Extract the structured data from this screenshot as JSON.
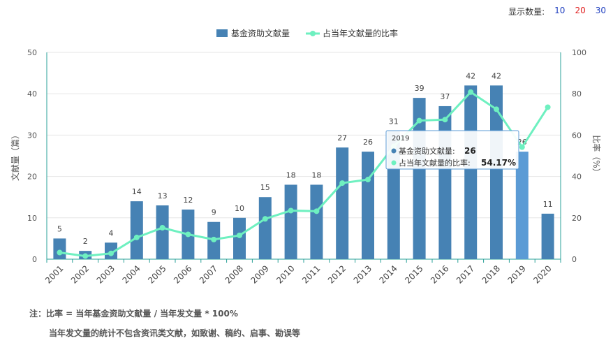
{
  "display_count": {
    "label": "显示数量:",
    "options": [
      {
        "label": "10",
        "color": "#1f3fbf"
      },
      {
        "label": "20",
        "color": "#e02020"
      },
      {
        "label": "30",
        "color": "#1f3fbf"
      }
    ]
  },
  "chart_data": {
    "type": "bar",
    "categories": [
      "2001",
      "2002",
      "2003",
      "2004",
      "2005",
      "2006",
      "2007",
      "2008",
      "2009",
      "2010",
      "2011",
      "2012",
      "2013",
      "2014",
      "2015",
      "2016",
      "2017",
      "2018",
      "2019",
      "2020"
    ],
    "series": [
      {
        "name": "基金资助文献量",
        "type": "bar",
        "axis": "left",
        "color": "#4682b4",
        "values": [
          5,
          2,
          4,
          14,
          13,
          12,
          9,
          10,
          15,
          18,
          18,
          27,
          26,
          31,
          39,
          37,
          42,
          42,
          26,
          11
        ]
      },
      {
        "name": "占当年文献量的比率",
        "type": "line",
        "axis": "right",
        "color": "#6ef0c0",
        "values": [
          3.2,
          1.5,
          2.8,
          10.5,
          15.2,
          12.0,
          9.5,
          11.5,
          19.5,
          23.5,
          23.2,
          36.8,
          38.5,
          54.5,
          67.0,
          67.5,
          80.8,
          72.5,
          54.17,
          73.5
        ]
      }
    ],
    "ylabel_left": "文献量（篇）",
    "ylabel_right": "比率（%）",
    "ylim_left": [
      0,
      50
    ],
    "ylim_right": [
      0,
      100
    ],
    "yticks_left": [
      0,
      10,
      20,
      30,
      40,
      50
    ],
    "yticks_right": [
      0,
      20,
      40,
      60,
      80,
      100
    ],
    "legend_position": "top-center",
    "grid": true,
    "highlight_index": 18,
    "tooltip": {
      "title": "2019",
      "rows": [
        {
          "label": "基金资助文献量:",
          "value": "26"
        },
        {
          "label": "占当年文献量的比率:",
          "value": "54.17%"
        }
      ]
    }
  },
  "notes": {
    "line1": "注：比率 = 当年基金资助文献量 / 当年发文量 * 100%",
    "line2": "当年发文量的统计不包含资讯类文献，如致谢、稿约、启事、勘误等"
  }
}
